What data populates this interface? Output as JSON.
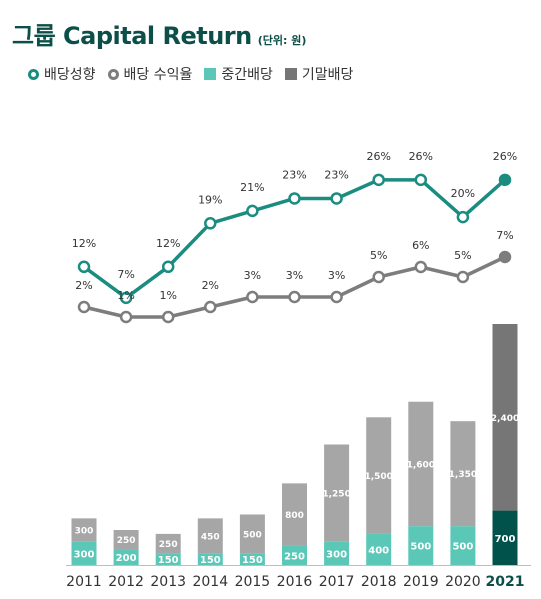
{
  "title": "그룹 Capital Return",
  "unit": "(단위: 원)",
  "legend": {
    "payout": "배당성향",
    "yield": "배당 수익율",
    "interim": "중간배당",
    "final": "기말배당"
  },
  "colors": {
    "payout_line": "#1a8c80",
    "payout_last": "#1a8c80",
    "yield_line": "#7d7d7d",
    "interim_bar": "#5bc7b7",
    "interim_last": "#00524a",
    "final_bar": "#a6a6a6",
    "final_last": "#767676",
    "title": "#0b4f48"
  },
  "chart_data": {
    "type": "bar",
    "categories": [
      "2011",
      "2012",
      "2013",
      "2014",
      "2015",
      "2016",
      "2017",
      "2018",
      "2019",
      "2020",
      "2021"
    ],
    "highlight_category": "2021",
    "series": [
      {
        "name": "중간배당",
        "kind": "stacked-bar",
        "values": [
          300,
          200,
          150,
          150,
          150,
          250,
          300,
          400,
          500,
          500,
          700
        ],
        "labels": [
          "300",
          "200",
          "150",
          "150",
          "150",
          "250",
          "300",
          "400",
          "500",
          "500",
          "700"
        ]
      },
      {
        "name": "기말배당",
        "kind": "stacked-bar",
        "values": [
          300,
          250,
          250,
          450,
          500,
          800,
          1250,
          1500,
          1600,
          1350,
          2400
        ],
        "labels": [
          "300",
          "250",
          "250",
          "450",
          "500",
          "800",
          "1,250",
          "1,500",
          "1,600",
          "1,350",
          "2,400"
        ]
      },
      {
        "name": "배당성향",
        "kind": "line",
        "values": [
          12,
          7,
          12,
          19,
          21,
          23,
          23,
          26,
          26,
          20,
          26
        ],
        "labels": [
          "12%",
          "7%",
          "12%",
          "19%",
          "21%",
          "23%",
          "23%",
          "26%",
          "26%",
          "20%",
          "26%"
        ]
      },
      {
        "name": "배당 수익율",
        "kind": "line",
        "values": [
          2,
          1,
          1,
          2,
          3,
          3,
          3,
          5,
          6,
          5,
          7
        ],
        "labels": [
          "2%",
          "1%",
          "1%",
          "2%",
          "3%",
          "3%",
          "3%",
          "5%",
          "6%",
          "5%",
          "7%"
        ]
      }
    ]
  }
}
